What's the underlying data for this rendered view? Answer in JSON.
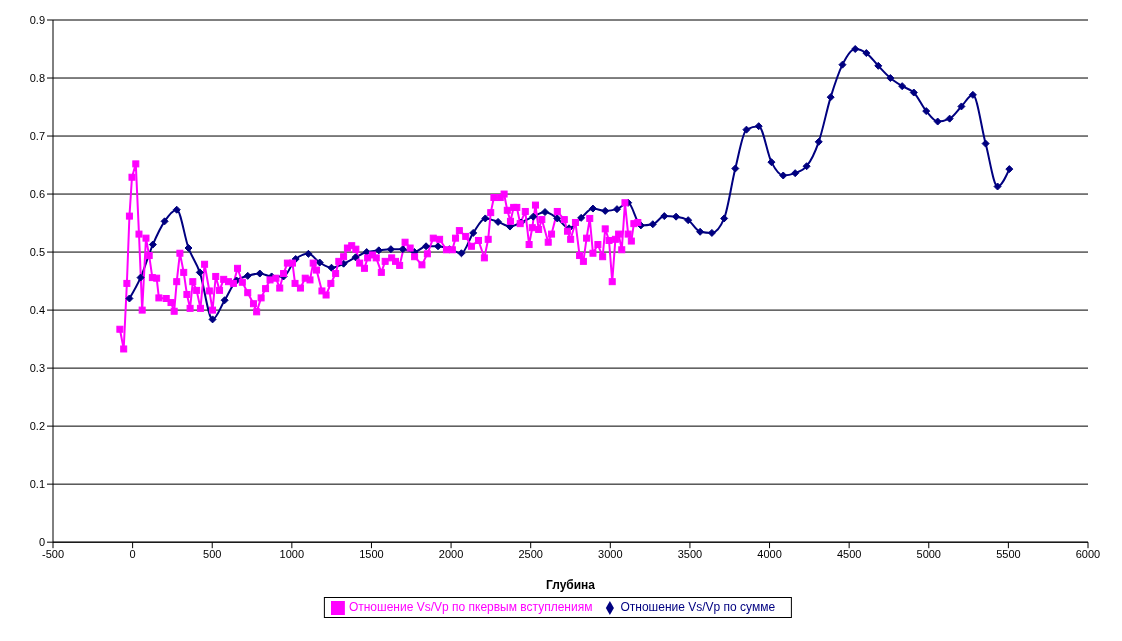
{
  "chart_data": {
    "type": "line",
    "xlabel": "Глубина",
    "xlim": [
      -500,
      6000
    ],
    "xticks": [
      -500,
      0,
      500,
      1000,
      1500,
      2000,
      2500,
      3000,
      3500,
      4000,
      4500,
      5000,
      5500,
      6000
    ],
    "ylim": [
      0,
      0.9
    ],
    "yticks": [
      0,
      0.1,
      0.2,
      0.3,
      0.4,
      0.5,
      0.6,
      0.7,
      0.8,
      0.9
    ],
    "grid": "y",
    "legend": "bottom",
    "series": [
      {
        "name": "Отношение Vs/Vp по сумме",
        "color": "#000080",
        "marker": "diamond",
        "x": [
          -20,
          50,
          127,
          201,
          277,
          351,
          422,
          502,
          578,
          653,
          723,
          799,
          873,
          948,
          1024,
          1104,
          1175,
          1249,
          1325,
          1400,
          1470,
          1546,
          1622,
          1697,
          1770,
          1843,
          1918,
          1990,
          2065,
          2139,
          2215,
          2295,
          2370,
          2440,
          2516,
          2590,
          2667,
          2741,
          2817,
          2891,
          2968,
          3042,
          3112,
          3192,
          3267,
          3339,
          3413,
          3489,
          3564,
          3638,
          3715,
          3785,
          3855,
          3932,
          4012,
          4086,
          4161,
          4233,
          4309,
          4384,
          4458,
          4538,
          4608,
          4683,
          4759,
          4833,
          4906,
          4984,
          5056,
          5131,
          5205,
          5277,
          5357,
          5432,
          5506
        ],
        "values": [
          0.42,
          0.456,
          0.513,
          0.553,
          0.573,
          0.507,
          0.465,
          0.384,
          0.417,
          0.451,
          0.459,
          0.463,
          0.458,
          0.458,
          0.488,
          0.497,
          0.482,
          0.473,
          0.48,
          0.491,
          0.5,
          0.503,
          0.505,
          0.505,
          0.5,
          0.51,
          0.51,
          0.505,
          0.498,
          0.533,
          0.558,
          0.552,
          0.544,
          0.551,
          0.561,
          0.569,
          0.558,
          0.541,
          0.559,
          0.575,
          0.571,
          0.574,
          0.585,
          0.546,
          0.548,
          0.562,
          0.561,
          0.555,
          0.535,
          0.533,
          0.558,
          0.644,
          0.711,
          0.717,
          0.655,
          0.632,
          0.636,
          0.648,
          0.69,
          0.767,
          0.823,
          0.85,
          0.843,
          0.821,
          0.8,
          0.786,
          0.775,
          0.743,
          0.725,
          0.73,
          0.751,
          0.771,
          0.687,
          0.613,
          0.643
        ]
      },
      {
        "name": "Отношение Vs/Vp по пкервым вступлениям",
        "color": "#ff00ff",
        "marker": "square",
        "x": [
          -80,
          -56,
          -36,
          -20,
          -4,
          20,
          40,
          60,
          84,
          104,
          124,
          151,
          165,
          211,
          241,
          261,
          277,
          297,
          321,
          341,
          361,
          378,
          402,
          426,
          452,
          482,
          502,
          522,
          546,
          572,
          602,
          633,
          659,
          689,
          723,
          759,
          779,
          807,
          835,
          863,
          900,
          924,
          948,
          972,
          1004,
          1020,
          1054,
          1084,
          1114,
          1134,
          1155,
          1189,
          1215,
          1245,
          1275,
          1295,
          1325,
          1349,
          1376,
          1402,
          1426,
          1456,
          1476,
          1506,
          1530,
          1562,
          1586,
          1627,
          1651,
          1677,
          1711,
          1743,
          1771,
          1817,
          1851,
          1888,
          1928,
          1971,
          2008,
          2028,
          2052,
          2092,
          2128,
          2172,
          2209,
          2233,
          2249,
          2269,
          2309,
          2333,
          2353,
          2373,
          2393,
          2413,
          2434,
          2466,
          2490,
          2510,
          2530,
          2550,
          2570,
          2610,
          2631,
          2667,
          2711,
          2731,
          2751,
          2781,
          2807,
          2831,
          2851,
          2871,
          2891,
          2922,
          2952,
          2968,
          2992,
          3012,
          3032,
          3052,
          3072,
          3092,
          3112,
          3132,
          3148,
          3173
        ],
        "values": [
          0.367,
          0.333,
          0.446,
          0.562,
          0.629,
          0.652,
          0.531,
          0.4,
          0.524,
          0.494,
          0.456,
          0.455,
          0.421,
          0.42,
          0.413,
          0.398,
          0.449,
          0.498,
          0.465,
          0.427,
          0.403,
          0.449,
          0.434,
          0.403,
          0.479,
          0.433,
          0.4,
          0.458,
          0.434,
          0.453,
          0.449,
          0.446,
          0.472,
          0.448,
          0.43,
          0.411,
          0.397,
          0.421,
          0.437,
          0.452,
          0.455,
          0.438,
          0.463,
          0.481,
          0.481,
          0.446,
          0.438,
          0.455,
          0.452,
          0.481,
          0.469,
          0.433,
          0.426,
          0.446,
          0.463,
          0.484,
          0.492,
          0.507,
          0.511,
          0.505,
          0.481,
          0.472,
          0.49,
          0.495,
          0.49,
          0.465,
          0.484,
          0.49,
          0.484,
          0.477,
          0.517,
          0.507,
          0.492,
          0.478,
          0.497,
          0.524,
          0.522,
          0.504,
          0.504,
          0.524,
          0.537,
          0.527,
          0.51,
          0.52,
          0.49,
          0.522,
          0.568,
          0.594,
          0.594,
          0.6,
          0.572,
          0.553,
          0.577,
          0.577,
          0.549,
          0.57,
          0.513,
          0.542,
          0.581,
          0.539,
          0.556,
          0.517,
          0.531,
          0.57,
          0.556,
          0.536,
          0.522,
          0.551,
          0.494,
          0.484,
          0.524,
          0.558,
          0.498,
          0.513,
          0.492,
          0.54,
          0.52,
          0.449,
          0.522,
          0.531,
          0.504,
          0.585,
          0.531,
          0.519,
          0.549,
          0.551
        ]
      }
    ]
  }
}
